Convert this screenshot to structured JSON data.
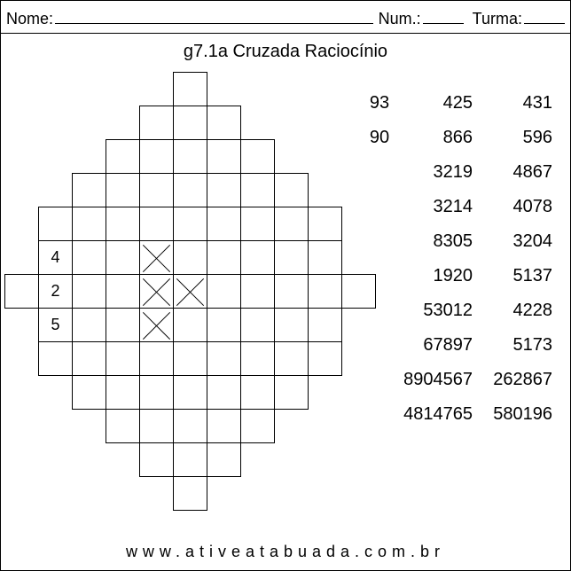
{
  "header": {
    "nome_label": "Nome:",
    "num_label": "Num.:",
    "turma_label": "Turma:"
  },
  "title": "g7.1a Cruzada Raciocínio",
  "grid": {
    "cell_size": 38,
    "rows": 13,
    "cols": 11,
    "cells": [
      {
        "r": 0,
        "c": 5
      },
      {
        "r": 1,
        "c": 4
      },
      {
        "r": 1,
        "c": 5
      },
      {
        "r": 1,
        "c": 6
      },
      {
        "r": 2,
        "c": 3
      },
      {
        "r": 2,
        "c": 4
      },
      {
        "r": 2,
        "c": 5
      },
      {
        "r": 2,
        "c": 6
      },
      {
        "r": 2,
        "c": 7
      },
      {
        "r": 3,
        "c": 2
      },
      {
        "r": 3,
        "c": 3
      },
      {
        "r": 3,
        "c": 4
      },
      {
        "r": 3,
        "c": 5
      },
      {
        "r": 3,
        "c": 6
      },
      {
        "r": 3,
        "c": 7
      },
      {
        "r": 3,
        "c": 8
      },
      {
        "r": 4,
        "c": 1
      },
      {
        "r": 4,
        "c": 2
      },
      {
        "r": 4,
        "c": 3
      },
      {
        "r": 4,
        "c": 4
      },
      {
        "r": 4,
        "c": 5
      },
      {
        "r": 4,
        "c": 6
      },
      {
        "r": 4,
        "c": 7
      },
      {
        "r": 4,
        "c": 8
      },
      {
        "r": 4,
        "c": 9
      },
      {
        "r": 5,
        "c": 1,
        "v": "4"
      },
      {
        "r": 5,
        "c": 2
      },
      {
        "r": 5,
        "c": 3
      },
      {
        "r": 5,
        "c": 4,
        "x": true
      },
      {
        "r": 5,
        "c": 5
      },
      {
        "r": 5,
        "c": 6
      },
      {
        "r": 5,
        "c": 7
      },
      {
        "r": 5,
        "c": 8
      },
      {
        "r": 5,
        "c": 9
      },
      {
        "r": 6,
        "c": 0
      },
      {
        "r": 6,
        "c": 1,
        "v": "2"
      },
      {
        "r": 6,
        "c": 2
      },
      {
        "r": 6,
        "c": 3
      },
      {
        "r": 6,
        "c": 4,
        "x": true
      },
      {
        "r": 6,
        "c": 5,
        "x": true
      },
      {
        "r": 6,
        "c": 6
      },
      {
        "r": 6,
        "c": 7
      },
      {
        "r": 6,
        "c": 8
      },
      {
        "r": 6,
        "c": 9
      },
      {
        "r": 6,
        "c": 10
      },
      {
        "r": 7,
        "c": 1,
        "v": "5"
      },
      {
        "r": 7,
        "c": 2
      },
      {
        "r": 7,
        "c": 3
      },
      {
        "r": 7,
        "c": 4,
        "x": true
      },
      {
        "r": 7,
        "c": 5
      },
      {
        "r": 7,
        "c": 6
      },
      {
        "r": 7,
        "c": 7
      },
      {
        "r": 7,
        "c": 8
      },
      {
        "r": 7,
        "c": 9
      },
      {
        "r": 8,
        "c": 1
      },
      {
        "r": 8,
        "c": 2
      },
      {
        "r": 8,
        "c": 3
      },
      {
        "r": 8,
        "c": 4
      },
      {
        "r": 8,
        "c": 5
      },
      {
        "r": 8,
        "c": 6
      },
      {
        "r": 8,
        "c": 7
      },
      {
        "r": 8,
        "c": 8
      },
      {
        "r": 8,
        "c": 9
      },
      {
        "r": 9,
        "c": 2
      },
      {
        "r": 9,
        "c": 3
      },
      {
        "r": 9,
        "c": 4
      },
      {
        "r": 9,
        "c": 5
      },
      {
        "r": 9,
        "c": 6
      },
      {
        "r": 9,
        "c": 7
      },
      {
        "r": 9,
        "c": 8
      },
      {
        "r": 10,
        "c": 3
      },
      {
        "r": 10,
        "c": 4
      },
      {
        "r": 10,
        "c": 5
      },
      {
        "r": 10,
        "c": 6
      },
      {
        "r": 10,
        "c": 7
      },
      {
        "r": 11,
        "c": 4
      },
      {
        "r": 11,
        "c": 5
      },
      {
        "r": 11,
        "c": 6
      },
      {
        "r": 12,
        "c": 5
      }
    ]
  },
  "numbers": {
    "rows": [
      [
        "93",
        "425",
        "431"
      ],
      [
        "90",
        "866",
        "596"
      ],
      [
        "",
        "3219",
        "4867"
      ],
      [
        "",
        "3214",
        "4078"
      ],
      [
        "",
        "8305",
        "3204"
      ],
      [
        "",
        "1920",
        "5137"
      ],
      [
        "",
        "53012",
        "4228"
      ],
      [
        "",
        "67897",
        "5173"
      ],
      [
        "",
        "8904567",
        "262867"
      ],
      [
        "",
        "4814765",
        "580196"
      ]
    ]
  },
  "footer": "www.ativeatabuada.com.br"
}
